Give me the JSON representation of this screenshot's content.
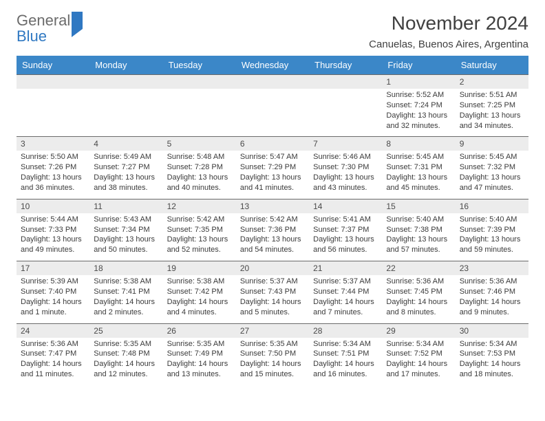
{
  "logo": {
    "general": "General",
    "blue": "Blue"
  },
  "title": "November 2024",
  "location": "Canuelas, Buenos Aires, Argentina",
  "colors": {
    "header_bg": "#3b87c8",
    "header_text": "#ffffff",
    "daynum_bg": "#ececec",
    "border_top": "#6a6a6a",
    "logo_blue": "#2f78c2",
    "logo_gray": "#6b6b6b"
  },
  "dayNames": [
    "Sunday",
    "Monday",
    "Tuesday",
    "Wednesday",
    "Thursday",
    "Friday",
    "Saturday"
  ],
  "weeks": [
    [
      {
        "n": "",
        "sunrise": "",
        "sunset": "",
        "daylight": ""
      },
      {
        "n": "",
        "sunrise": "",
        "sunset": "",
        "daylight": ""
      },
      {
        "n": "",
        "sunrise": "",
        "sunset": "",
        "daylight": ""
      },
      {
        "n": "",
        "sunrise": "",
        "sunset": "",
        "daylight": ""
      },
      {
        "n": "",
        "sunrise": "",
        "sunset": "",
        "daylight": ""
      },
      {
        "n": "1",
        "sunrise": "Sunrise: 5:52 AM",
        "sunset": "Sunset: 7:24 PM",
        "daylight": "Daylight: 13 hours and 32 minutes."
      },
      {
        "n": "2",
        "sunrise": "Sunrise: 5:51 AM",
        "sunset": "Sunset: 7:25 PM",
        "daylight": "Daylight: 13 hours and 34 minutes."
      }
    ],
    [
      {
        "n": "3",
        "sunrise": "Sunrise: 5:50 AM",
        "sunset": "Sunset: 7:26 PM",
        "daylight": "Daylight: 13 hours and 36 minutes."
      },
      {
        "n": "4",
        "sunrise": "Sunrise: 5:49 AM",
        "sunset": "Sunset: 7:27 PM",
        "daylight": "Daylight: 13 hours and 38 minutes."
      },
      {
        "n": "5",
        "sunrise": "Sunrise: 5:48 AM",
        "sunset": "Sunset: 7:28 PM",
        "daylight": "Daylight: 13 hours and 40 minutes."
      },
      {
        "n": "6",
        "sunrise": "Sunrise: 5:47 AM",
        "sunset": "Sunset: 7:29 PM",
        "daylight": "Daylight: 13 hours and 41 minutes."
      },
      {
        "n": "7",
        "sunrise": "Sunrise: 5:46 AM",
        "sunset": "Sunset: 7:30 PM",
        "daylight": "Daylight: 13 hours and 43 minutes."
      },
      {
        "n": "8",
        "sunrise": "Sunrise: 5:45 AM",
        "sunset": "Sunset: 7:31 PM",
        "daylight": "Daylight: 13 hours and 45 minutes."
      },
      {
        "n": "9",
        "sunrise": "Sunrise: 5:45 AM",
        "sunset": "Sunset: 7:32 PM",
        "daylight": "Daylight: 13 hours and 47 minutes."
      }
    ],
    [
      {
        "n": "10",
        "sunrise": "Sunrise: 5:44 AM",
        "sunset": "Sunset: 7:33 PM",
        "daylight": "Daylight: 13 hours and 49 minutes."
      },
      {
        "n": "11",
        "sunrise": "Sunrise: 5:43 AM",
        "sunset": "Sunset: 7:34 PM",
        "daylight": "Daylight: 13 hours and 50 minutes."
      },
      {
        "n": "12",
        "sunrise": "Sunrise: 5:42 AM",
        "sunset": "Sunset: 7:35 PM",
        "daylight": "Daylight: 13 hours and 52 minutes."
      },
      {
        "n": "13",
        "sunrise": "Sunrise: 5:42 AM",
        "sunset": "Sunset: 7:36 PM",
        "daylight": "Daylight: 13 hours and 54 minutes."
      },
      {
        "n": "14",
        "sunrise": "Sunrise: 5:41 AM",
        "sunset": "Sunset: 7:37 PM",
        "daylight": "Daylight: 13 hours and 56 minutes."
      },
      {
        "n": "15",
        "sunrise": "Sunrise: 5:40 AM",
        "sunset": "Sunset: 7:38 PM",
        "daylight": "Daylight: 13 hours and 57 minutes."
      },
      {
        "n": "16",
        "sunrise": "Sunrise: 5:40 AM",
        "sunset": "Sunset: 7:39 PM",
        "daylight": "Daylight: 13 hours and 59 minutes."
      }
    ],
    [
      {
        "n": "17",
        "sunrise": "Sunrise: 5:39 AM",
        "sunset": "Sunset: 7:40 PM",
        "daylight": "Daylight: 14 hours and 1 minute."
      },
      {
        "n": "18",
        "sunrise": "Sunrise: 5:38 AM",
        "sunset": "Sunset: 7:41 PM",
        "daylight": "Daylight: 14 hours and 2 minutes."
      },
      {
        "n": "19",
        "sunrise": "Sunrise: 5:38 AM",
        "sunset": "Sunset: 7:42 PM",
        "daylight": "Daylight: 14 hours and 4 minutes."
      },
      {
        "n": "20",
        "sunrise": "Sunrise: 5:37 AM",
        "sunset": "Sunset: 7:43 PM",
        "daylight": "Daylight: 14 hours and 5 minutes."
      },
      {
        "n": "21",
        "sunrise": "Sunrise: 5:37 AM",
        "sunset": "Sunset: 7:44 PM",
        "daylight": "Daylight: 14 hours and 7 minutes."
      },
      {
        "n": "22",
        "sunrise": "Sunrise: 5:36 AM",
        "sunset": "Sunset: 7:45 PM",
        "daylight": "Daylight: 14 hours and 8 minutes."
      },
      {
        "n": "23",
        "sunrise": "Sunrise: 5:36 AM",
        "sunset": "Sunset: 7:46 PM",
        "daylight": "Daylight: 14 hours and 9 minutes."
      }
    ],
    [
      {
        "n": "24",
        "sunrise": "Sunrise: 5:36 AM",
        "sunset": "Sunset: 7:47 PM",
        "daylight": "Daylight: 14 hours and 11 minutes."
      },
      {
        "n": "25",
        "sunrise": "Sunrise: 5:35 AM",
        "sunset": "Sunset: 7:48 PM",
        "daylight": "Daylight: 14 hours and 12 minutes."
      },
      {
        "n": "26",
        "sunrise": "Sunrise: 5:35 AM",
        "sunset": "Sunset: 7:49 PM",
        "daylight": "Daylight: 14 hours and 13 minutes."
      },
      {
        "n": "27",
        "sunrise": "Sunrise: 5:35 AM",
        "sunset": "Sunset: 7:50 PM",
        "daylight": "Daylight: 14 hours and 15 minutes."
      },
      {
        "n": "28",
        "sunrise": "Sunrise: 5:34 AM",
        "sunset": "Sunset: 7:51 PM",
        "daylight": "Daylight: 14 hours and 16 minutes."
      },
      {
        "n": "29",
        "sunrise": "Sunrise: 5:34 AM",
        "sunset": "Sunset: 7:52 PM",
        "daylight": "Daylight: 14 hours and 17 minutes."
      },
      {
        "n": "30",
        "sunrise": "Sunrise: 5:34 AM",
        "sunset": "Sunset: 7:53 PM",
        "daylight": "Daylight: 14 hours and 18 minutes."
      }
    ]
  ]
}
